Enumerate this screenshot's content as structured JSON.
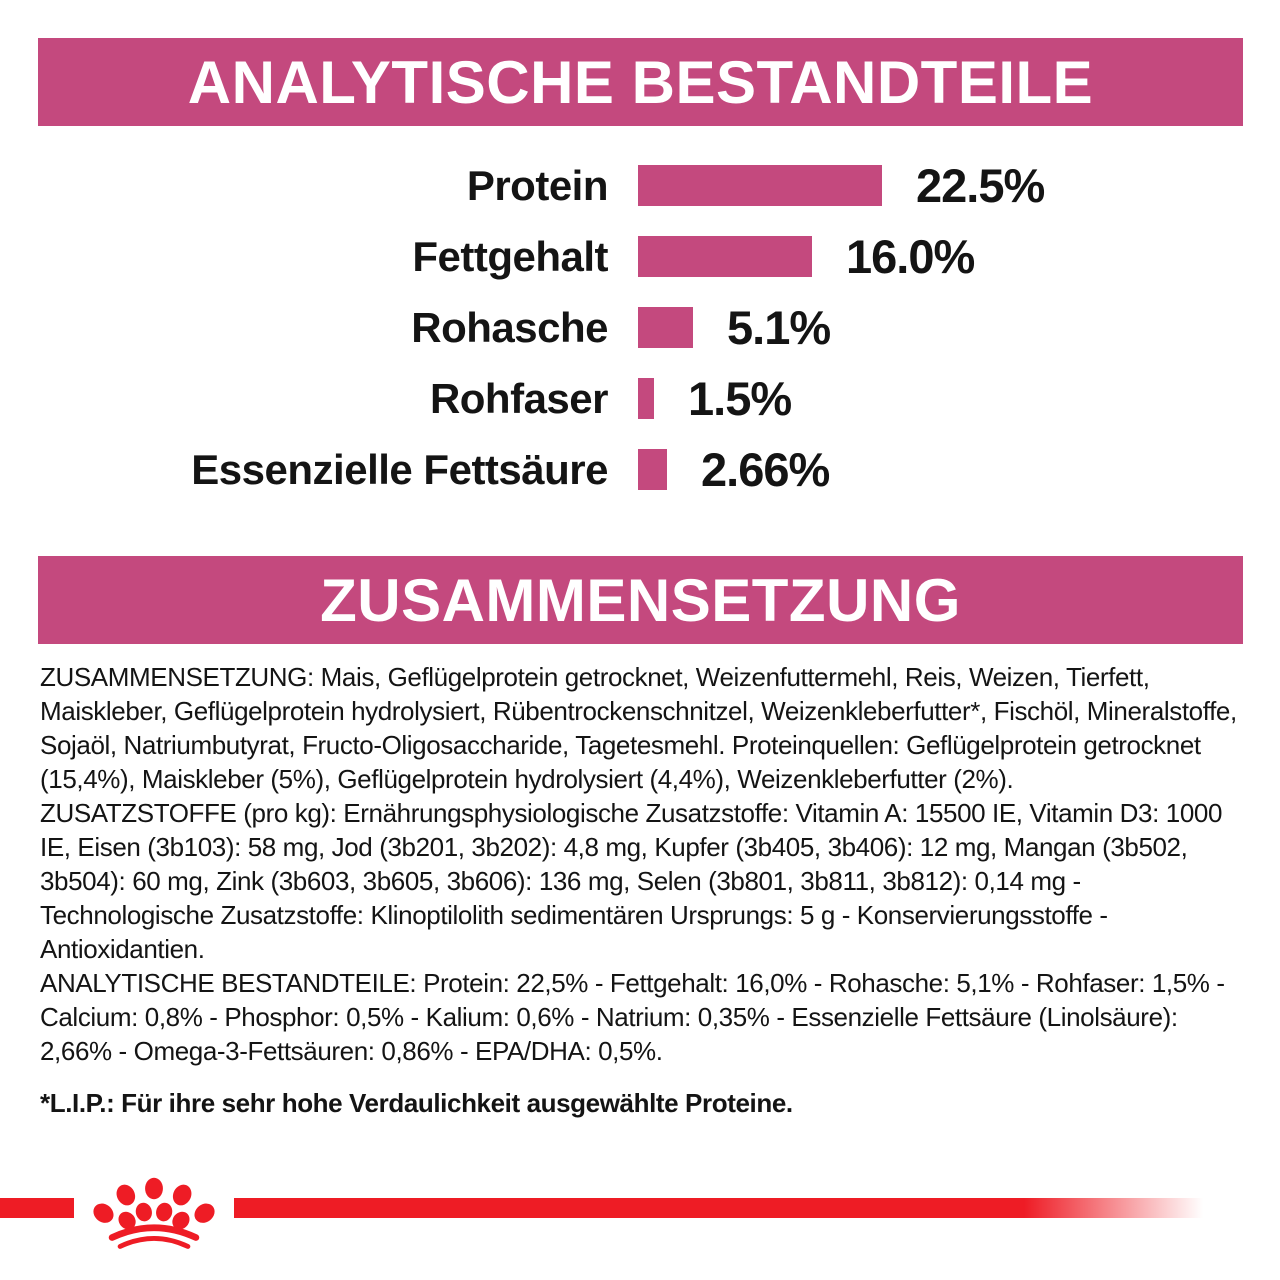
{
  "colors": {
    "pink": "#c4497e",
    "red": "#ee1c25",
    "text": "#141414",
    "background": "#ffffff"
  },
  "banners": {
    "analytical": "ANALYTISCHE BESTANDTEILE",
    "composition": "ZUSAMMENSETZUNG"
  },
  "chart_data": {
    "type": "bar",
    "orientation": "horizontal",
    "title": "ANALYTISCHE BESTANDTEILE",
    "categories": [
      "Protein",
      "Fettgehalt",
      "Rohasche",
      "Rohfaser",
      "Essenzielle Fettsäure"
    ],
    "values": [
      22.5,
      16.0,
      5.1,
      1.5,
      2.66
    ],
    "value_labels": [
      "22.5%",
      "16.0%",
      "5.1%",
      "1.5%",
      "2.66%"
    ],
    "unit": "%",
    "xlim": [
      0,
      22.5
    ],
    "bar_color": "#c4497e",
    "grid": false,
    "legend": false,
    "value_label_position": "right-of-bar"
  },
  "composition": {
    "paragraphs": [
      "ZUSAMMENSETZUNG: Mais, Geflügelprotein getrocknet, Weizenfuttermehl, Reis, Weizen, Tierfett, Maiskleber, Geflügelprotein hydrolysiert, Rübentrockenschnitzel, Weizenkleberfutter*, Fischöl, Mineralstoffe, Sojaöl, Natriumbutyrat, Fructo-Oligosaccharide, Tagetesmehl. Proteinquellen: Geflügelprotein getrocknet (15,4%), Maiskleber (5%), Geflügelprotein hydrolysiert (4,4%), Weizenkleberfutter (2%).",
      "ZUSATZSTOFFE (pro kg): Ernährungsphysiologische Zusatzstoffe: Vitamin A: 15500 IE, Vitamin D3: 1000 IE, Eisen (3b103): 58 mg, Jod (3b201, 3b202): 4,8 mg, Kupfer (3b405, 3b406): 12 mg, Mangan (3b502, 3b504): 60 mg, Zink (3b603, 3b605, 3b606): 136 mg, Selen (3b801, 3b811, 3b812): 0,14 mg - Technologische Zusatzstoffe: Klinoptilolith sedimentären Ursprungs: 5 g - Konservierungsstoffe - Antioxidantien.",
      "ANALYTISCHE BESTANDTEILE: Protein: 22,5% - Fettgehalt: 16,0% - Rohasche: 5,1% - Rohfaser: 1,5% - Calcium: 0,8% - Phosphor: 0,5% - Kalium: 0,6% - Natrium: 0,35% - Essenzielle Fettsäure (Linolsäure): 2,66% - Omega-3-Fettsäuren: 0,86% - EPA/DHA: 0,5%."
    ],
    "lip_note": "*L.I.P.: Für ihre sehr hohe Verdaulichkeit ausgewählte Proteine."
  },
  "footer": {
    "logo": "royal-canin-crown"
  }
}
